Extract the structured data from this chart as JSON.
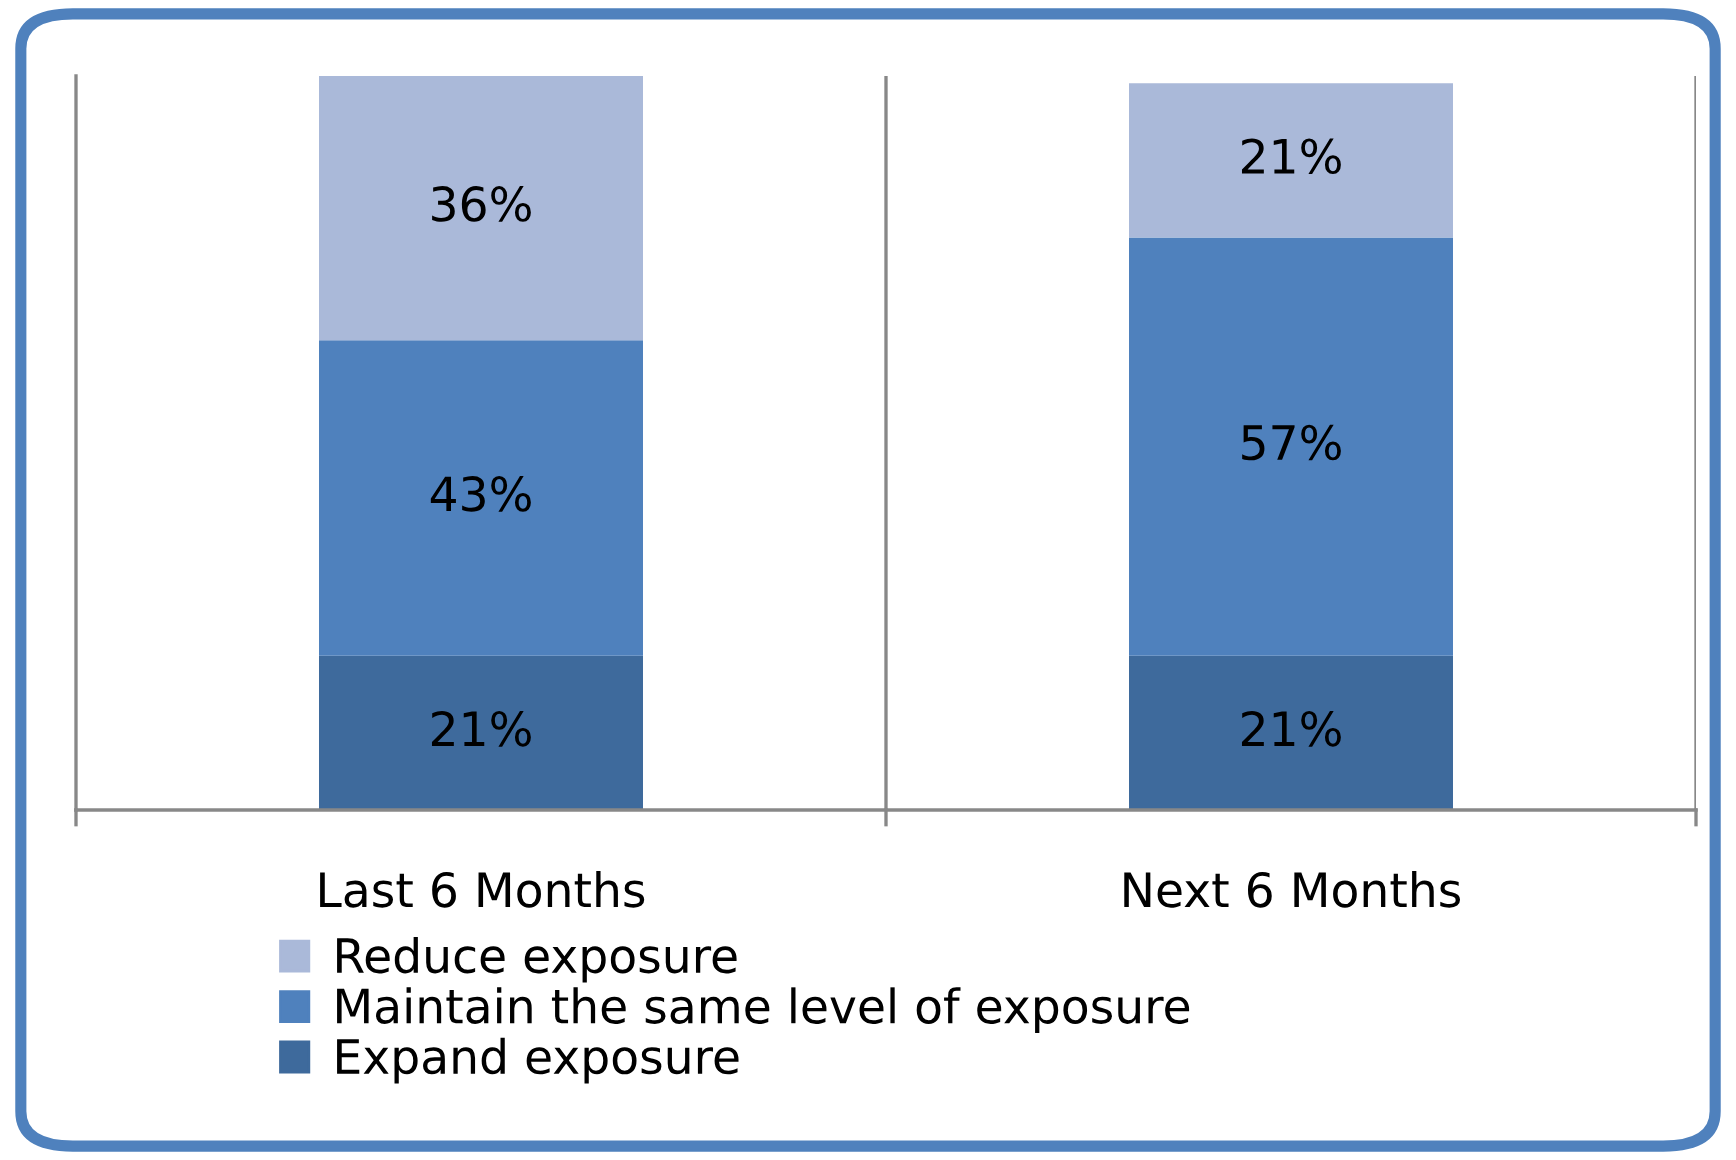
{
  "chart_data": {
    "type": "bar",
    "stacked": true,
    "categories": [
      "Last 6 Months",
      "Next 6 Months"
    ],
    "series": [
      {
        "name": "Expand exposure",
        "color": "#3e6a9c",
        "values": [
          21,
          21
        ],
        "value_labels": [
          "21%",
          "21%"
        ]
      },
      {
        "name": "Maintain the same level of exposure",
        "color": "#4f81bd",
        "values": [
          43,
          57
        ],
        "value_labels": [
          "43%",
          "57%"
        ]
      },
      {
        "name": "Reduce exposure",
        "color": "#aab9d9",
        "values": [
          36,
          21
        ],
        "value_labels": [
          "36%",
          "21%"
        ]
      }
    ],
    "grid": "x",
    "legend": "bottom",
    "tick_labels": "x"
  }
}
